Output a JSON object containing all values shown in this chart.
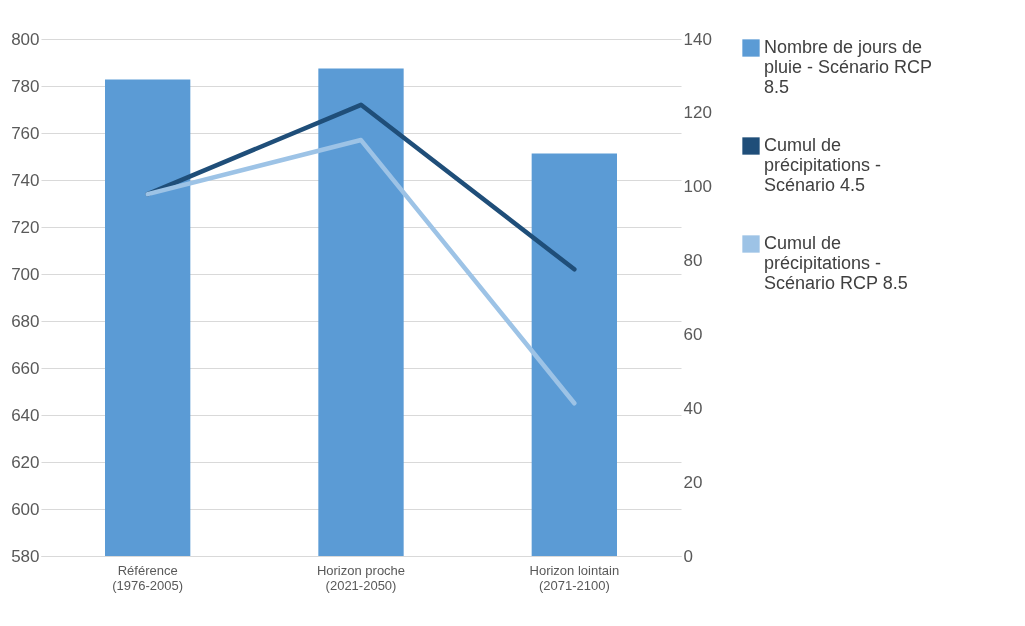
{
  "chart_data": {
    "type": "bar",
    "categories": [
      "Référence (1976-2005)",
      "Horizon proche (2021-2050)",
      "Horizon lointain (2071-2100)"
    ],
    "series": [
      {
        "name": "Nombre de jours de pluie - Scénario RCP 8.5",
        "axis": "y2",
        "color": "#5b9bd5",
        "values": [
          129,
          132,
          109
        ]
      },
      {
        "name": "Cumul de précipitations - Scénario 4.5",
        "type": "line",
        "color": "#1f4e79",
        "values": [
          734,
          772,
          702
        ]
      },
      {
        "name": "Cumul de précipitations - Scénario RCP 8.5",
        "type": "line",
        "color": "#9dc3e6",
        "values": [
          734,
          757,
          645
        ]
      }
    ],
    "ylim": [
      580,
      800
    ],
    "yticks": [
      580,
      600,
      620,
      640,
      660,
      680,
      700,
      720,
      740,
      760,
      780,
      800
    ],
    "y2lim": [
      0,
      140
    ],
    "y2ticks": [
      0,
      20,
      40,
      60,
      80,
      100,
      120,
      140
    ],
    "grid": "y",
    "legend": "right",
    "marker": "none",
    "line_style": "solid"
  }
}
